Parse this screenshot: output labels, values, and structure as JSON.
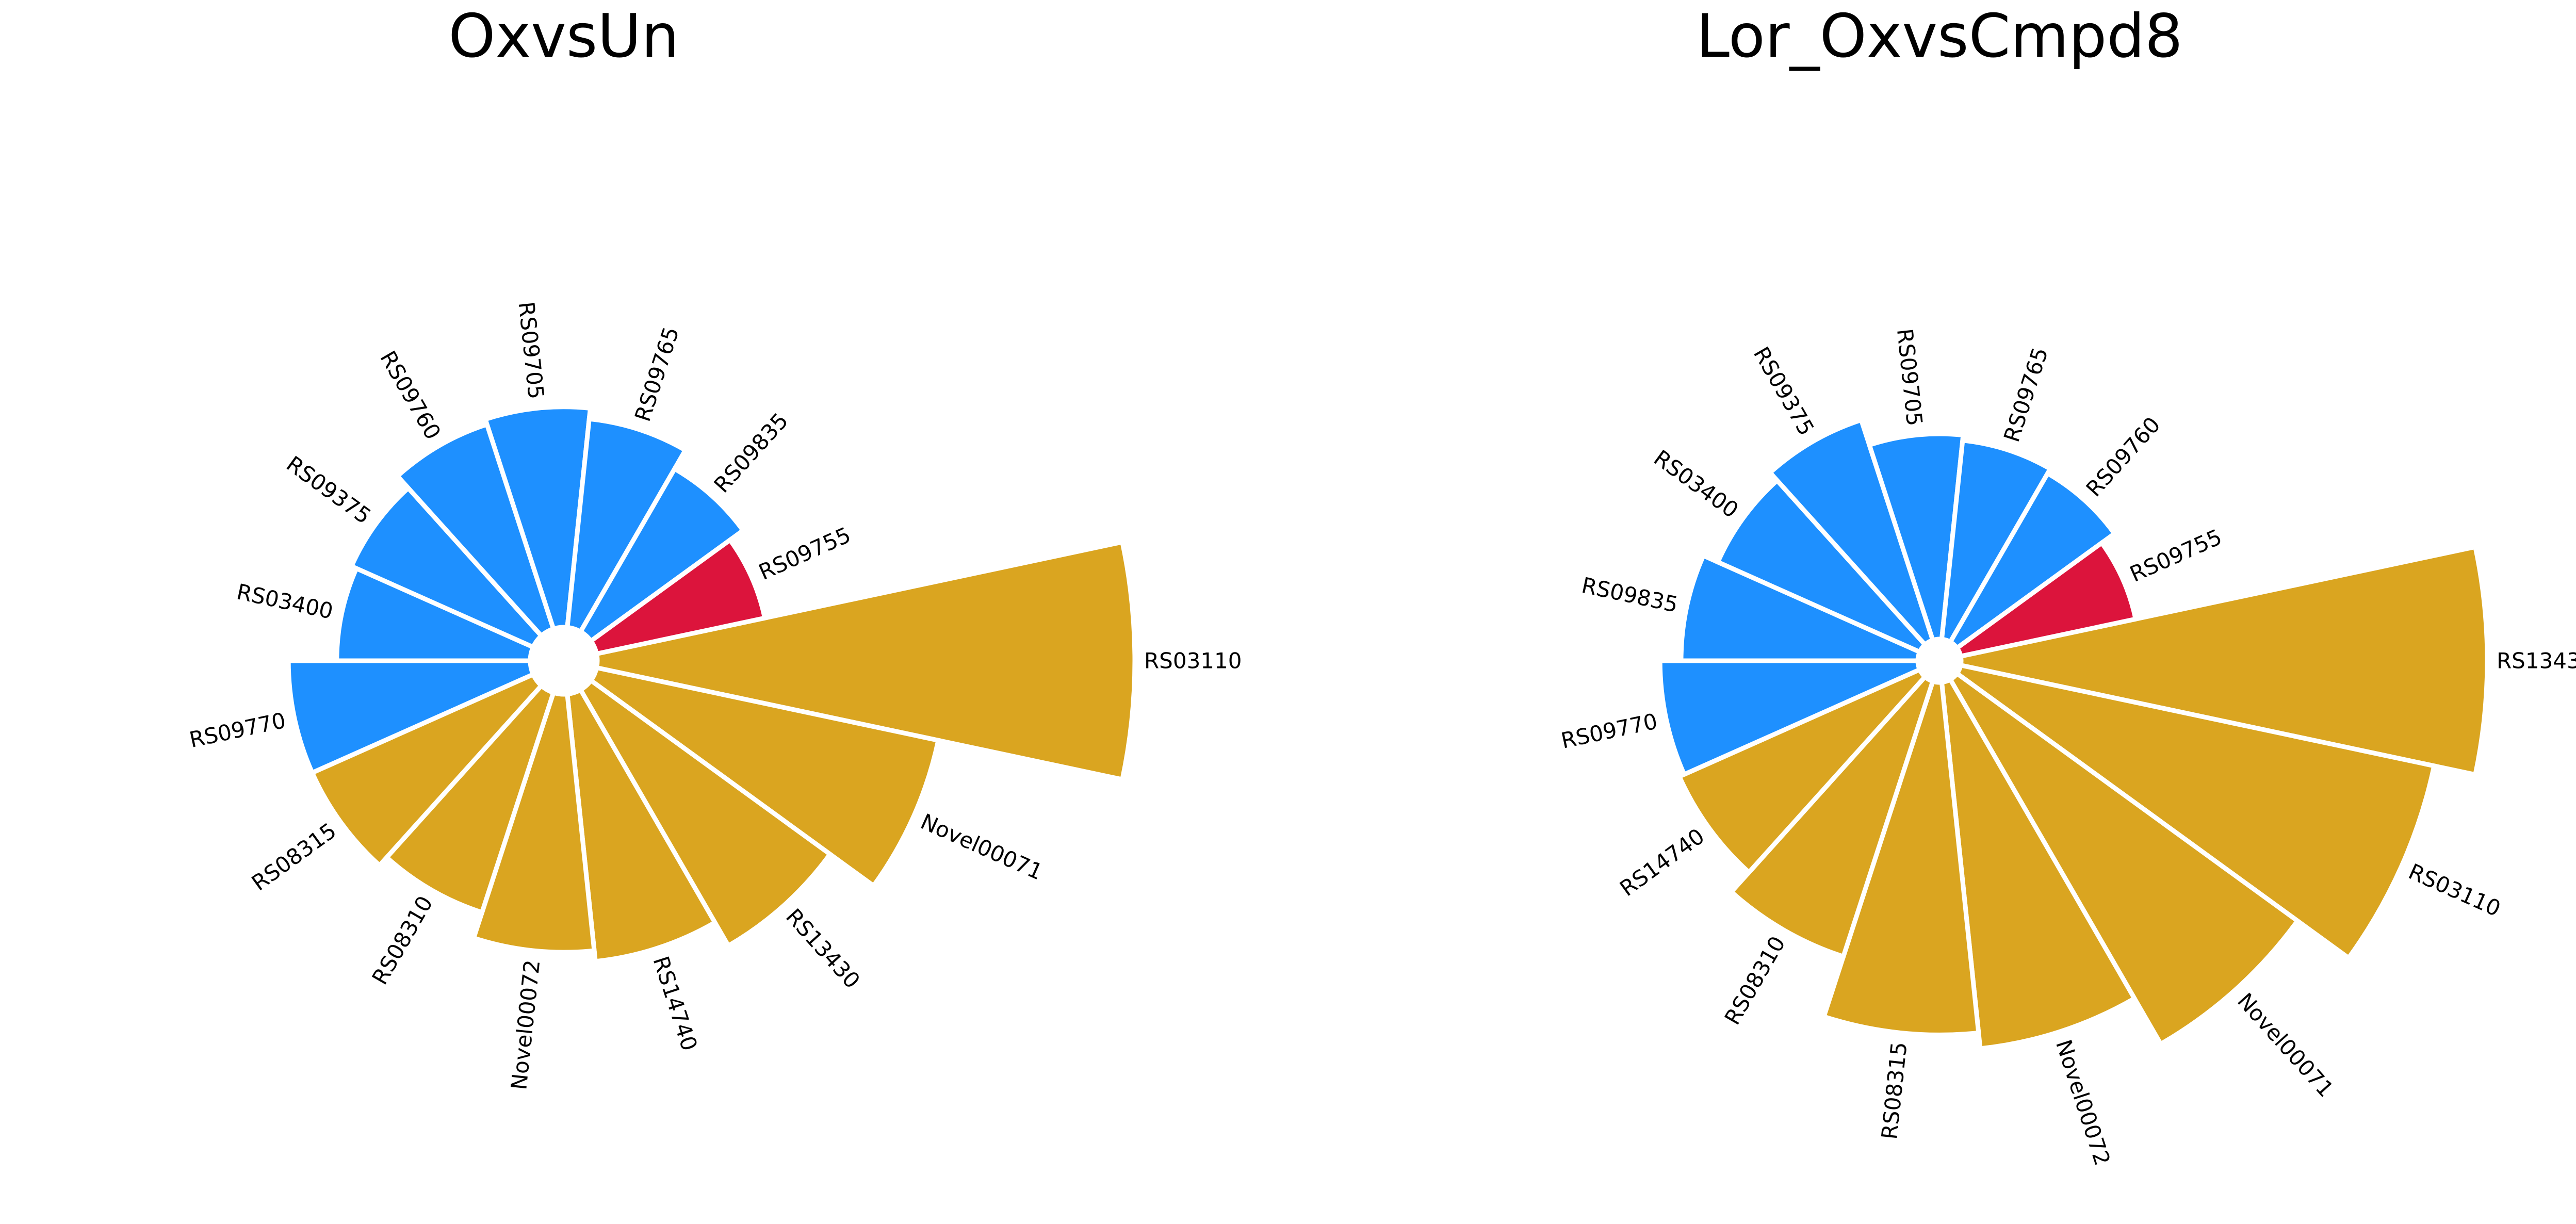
{
  "colors": {
    "up": "#DAA520",
    "down": "#1E90FF",
    "highlight": "#DC143C"
  },
  "chart_data": [
    {
      "type": "polar-bar",
      "title": "OxvsUn",
      "bars": [
        {
          "label": "RS03110",
          "value": 1.0,
          "color": "up"
        },
        {
          "label": "Novel00071",
          "value": 0.65,
          "color": "up"
        },
        {
          "label": "RS13430",
          "value": 0.55,
          "color": "up"
        },
        {
          "label": "RS14740",
          "value": 0.5,
          "color": "up"
        },
        {
          "label": "Novel00072",
          "value": 0.48,
          "color": "up"
        },
        {
          "label": "RS08310",
          "value": 0.43,
          "color": "up"
        },
        {
          "label": "RS08315",
          "value": 0.45,
          "color": "up"
        },
        {
          "label": "RS09770",
          "value": 0.45,
          "color": "down"
        },
        {
          "label": "RS03400",
          "value": 0.36,
          "color": "down"
        },
        {
          "label": "RS09375",
          "value": 0.37,
          "color": "down"
        },
        {
          "label": "RS09760",
          "value": 0.4,
          "color": "down"
        },
        {
          "label": "RS09705",
          "value": 0.41,
          "color": "down"
        },
        {
          "label": "RS09765",
          "value": 0.39,
          "color": "down"
        },
        {
          "label": "RS09835",
          "value": 0.35,
          "color": "down"
        },
        {
          "label": "RS09755",
          "value": 0.32,
          "color": "highlight"
        }
      ]
    },
    {
      "type": "polar-bar",
      "title": "Lor_OxvsCmpd8",
      "bars": [
        {
          "label": "RS13430",
          "value": 1.0,
          "color": "up"
        },
        {
          "label": "RS03110",
          "value": 0.92,
          "color": "up"
        },
        {
          "label": "Novel00071",
          "value": 0.8,
          "color": "up"
        },
        {
          "label": "Novel00072",
          "value": 0.7,
          "color": "up"
        },
        {
          "label": "RS08315",
          "value": 0.67,
          "color": "up"
        },
        {
          "label": "RS08310",
          "value": 0.55,
          "color": "up"
        },
        {
          "label": "RS14740",
          "value": 0.5,
          "color": "up"
        },
        {
          "label": "RS09770",
          "value": 0.49,
          "color": "down"
        },
        {
          "label": "RS09835",
          "value": 0.45,
          "color": "down"
        },
        {
          "label": "RS03400",
          "value": 0.42,
          "color": "down"
        },
        {
          "label": "RS09375",
          "value": 0.44,
          "color": "down"
        },
        {
          "label": "RS09705",
          "value": 0.39,
          "color": "down"
        },
        {
          "label": "RS09765",
          "value": 0.38,
          "color": "down"
        },
        {
          "label": "RS09760",
          "value": 0.37,
          "color": "down"
        },
        {
          "label": "RS09755",
          "value": 0.34,
          "color": "highlight"
        }
      ]
    }
  ]
}
